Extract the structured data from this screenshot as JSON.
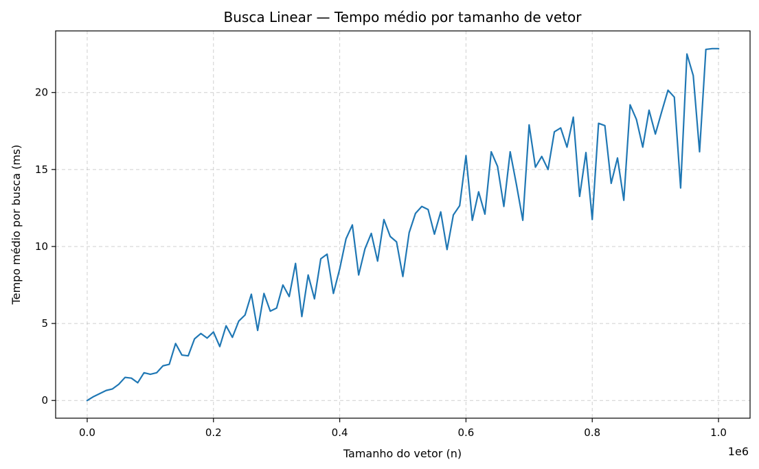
{
  "chart_data": {
    "type": "line",
    "title": "Busca Linear — Tempo médio por tamanho de vetor",
    "xlabel": "Tamanho do vetor (n)",
    "ylabel": "Tempo médio por busca (ms)",
    "x_offset_label": "1e6",
    "xlim": [
      -0.05,
      1.05
    ],
    "ylim": [
      -1.15,
      24.0
    ],
    "x_ticks": [
      0.0,
      0.2,
      0.4,
      0.6,
      0.8,
      1.0
    ],
    "x_tick_labels": [
      "0.0",
      "0.2",
      "0.4",
      "0.6",
      "0.8",
      "1.0"
    ],
    "y_ticks": [
      0,
      5,
      10,
      15,
      20
    ],
    "y_tick_labels": [
      "0",
      "5",
      "10",
      "15",
      "20"
    ],
    "grid": true,
    "line_color": "#1f77b4",
    "x": [
      0.0,
      0.01,
      0.02,
      0.03,
      0.04,
      0.05,
      0.06,
      0.07,
      0.08,
      0.09,
      0.1,
      0.11,
      0.12,
      0.13,
      0.14,
      0.15,
      0.16,
      0.17,
      0.18,
      0.19,
      0.2,
      0.21,
      0.22,
      0.23,
      0.24,
      0.25,
      0.26,
      0.27,
      0.28,
      0.29,
      0.3,
      0.31,
      0.32,
      0.33,
      0.34,
      0.35,
      0.36,
      0.37,
      0.38,
      0.39,
      0.4,
      0.41,
      0.42,
      0.43,
      0.44,
      0.45,
      0.46,
      0.47,
      0.48,
      0.49,
      0.5,
      0.51,
      0.52,
      0.53,
      0.54,
      0.55,
      0.56,
      0.57,
      0.58,
      0.59,
      0.6,
      0.61,
      0.62,
      0.63,
      0.64,
      0.65,
      0.66,
      0.67,
      0.68,
      0.69,
      0.7,
      0.71,
      0.72,
      0.73,
      0.74,
      0.75,
      0.76,
      0.77,
      0.78,
      0.79,
      0.8,
      0.81,
      0.82,
      0.83,
      0.84,
      0.85,
      0.86,
      0.87,
      0.88,
      0.89,
      0.9,
      0.91,
      0.92,
      0.93,
      0.94,
      0.95,
      0.96,
      0.97,
      0.98,
      0.99,
      1.0
    ],
    "y": [
      0.0,
      0.25,
      0.45,
      0.65,
      0.75,
      1.05,
      1.5,
      1.45,
      1.15,
      1.8,
      1.7,
      1.8,
      2.25,
      2.35,
      3.7,
      2.95,
      2.9,
      4.0,
      4.35,
      4.05,
      4.45,
      3.5,
      4.85,
      4.1,
      5.15,
      5.55,
      6.9,
      4.55,
      6.95,
      5.8,
      6.0,
      7.5,
      6.75,
      8.9,
      5.45,
      8.15,
      6.6,
      9.2,
      9.5,
      6.95,
      8.55,
      10.5,
      11.4,
      8.15,
      9.85,
      10.85,
      9.05,
      11.75,
      10.65,
      10.3,
      8.05,
      10.9,
      12.15,
      12.6,
      12.4,
      10.8,
      12.25,
      9.8,
      12.05,
      12.65,
      15.9,
      11.7,
      13.55,
      12.1,
      16.15,
      15.2,
      12.6,
      16.15,
      14.0,
      11.7,
      17.9,
      15.15,
      15.85,
      15.0,
      17.45,
      17.7,
      16.45,
      18.4,
      13.25,
      16.1,
      11.75,
      18.0,
      17.85,
      14.1,
      15.75,
      13.0,
      19.2,
      18.25,
      16.45,
      18.85,
      17.3,
      18.75,
      20.15,
      19.7,
      13.8,
      22.5,
      21.1,
      16.15,
      22.8,
      22.85,
      22.85
    ]
  }
}
